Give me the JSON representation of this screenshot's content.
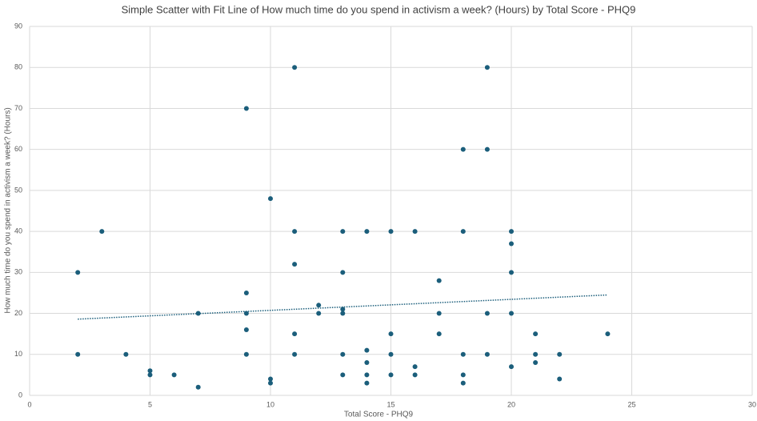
{
  "chart_data": {
    "type": "scatter",
    "title": "Simple Scatter with Fit Line of How much time do you spend in activism a week? (Hours) by Total Score - PHQ9",
    "x_label": "Total Score - PHQ9",
    "y_label": "How much time do you spend in activism a week? (Hours)",
    "xlim": [
      0,
      30
    ],
    "xticks": [
      0,
      5,
      10,
      15,
      20,
      25,
      30
    ],
    "ylim": [
      0,
      90
    ],
    "yticks": [
      0,
      10,
      20,
      30,
      40,
      50,
      60,
      70,
      80,
      90
    ],
    "grid": true,
    "series": [
      {
        "color": "#1b5e7b",
        "x": [
          2,
          2,
          3,
          4,
          5,
          5,
          6,
          7,
          7,
          9,
          9,
          9,
          9,
          9,
          10,
          10,
          10,
          11,
          11,
          11,
          11,
          11,
          12,
          12,
          13,
          13,
          13,
          13,
          13,
          13,
          14,
          14,
          14,
          14,
          14,
          15,
          15,
          15,
          15,
          16,
          16,
          16,
          17,
          17,
          17,
          18,
          18,
          18,
          18,
          18,
          19,
          19,
          19,
          19,
          20,
          20,
          20,
          20,
          20,
          21,
          21,
          21,
          22,
          22,
          24
        ],
        "values": [
          30,
          10,
          40,
          10,
          6,
          5,
          5,
          20,
          2,
          70,
          25,
          20,
          16,
          10,
          48,
          4,
          3,
          80,
          40,
          32,
          15,
          10,
          22,
          20,
          40,
          30,
          21,
          20,
          10,
          5,
          40,
          11,
          8,
          5,
          3,
          40,
          15,
          10,
          5,
          40,
          7,
          5,
          28,
          20,
          15,
          60,
          40,
          10,
          5,
          3,
          80,
          60,
          20,
          10,
          40,
          37,
          30,
          20,
          7,
          15,
          10,
          8,
          10,
          4,
          15
        ]
      }
    ],
    "trendline": {
      "color": "#1b5e7b",
      "x": [
        2,
        24
      ],
      "values": [
        18.6,
        24.5
      ]
    }
  }
}
